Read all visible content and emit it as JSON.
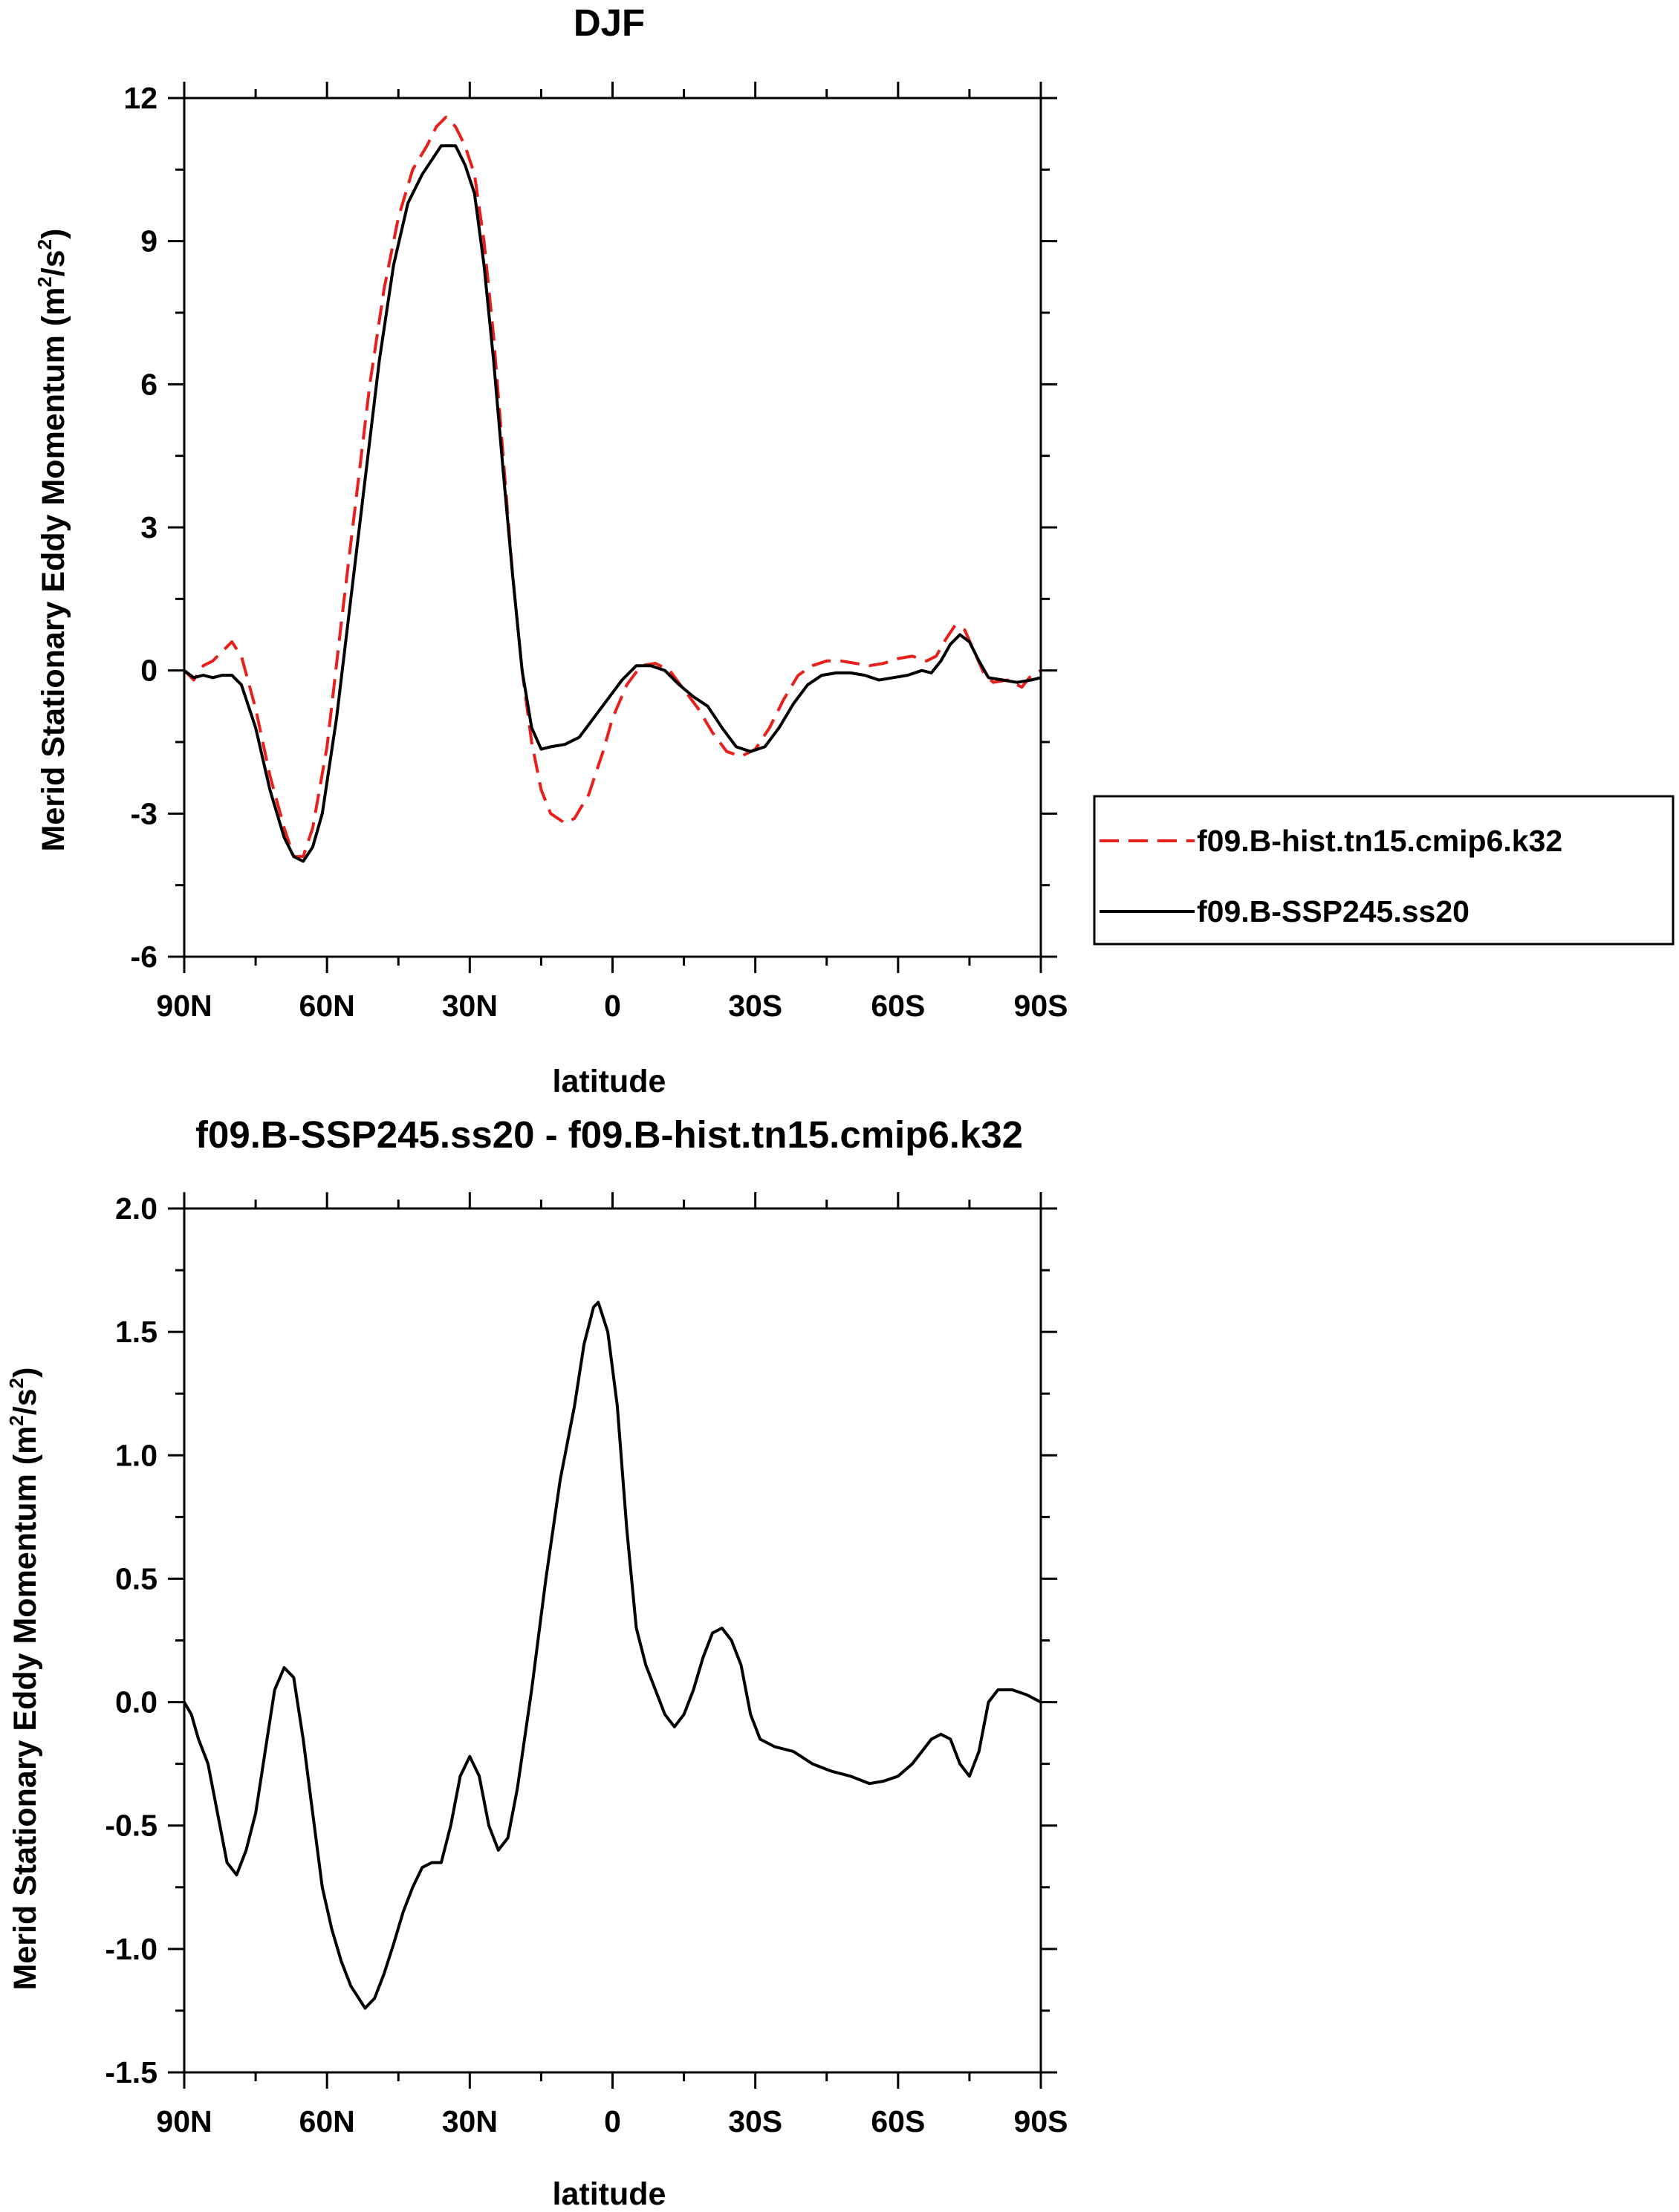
{
  "chart_data": [
    {
      "type": "line",
      "title": "DJF",
      "xlabel": "latitude",
      "ylabel_main": "Merid Stationary Eddy Momentum (m",
      "ylabel_sup1": "2",
      "ylabel_mid": "/s",
      "ylabel_sup2": "2",
      "ylabel_end": ")",
      "xlim": [
        90,
        -90
      ],
      "ylim": [
        -6,
        12
      ],
      "xticks": [
        90,
        60,
        30,
        0,
        -30,
        -60,
        -90
      ],
      "xtick_labels": [
        "90N",
        "60N",
        "30N",
        "0",
        "30S",
        "60S",
        "90S"
      ],
      "yticks": [
        -6,
        -3,
        0,
        3,
        6,
        9,
        12
      ],
      "ytick_labels": [
        "-6",
        "-3",
        "0",
        "3",
        "6",
        "9",
        "12"
      ],
      "grid": false,
      "legend_position": "right",
      "series": [
        {
          "name": "f09.B-hist.tn15.cmip6.k32",
          "color": "#e8201c",
          "dash": "dashed",
          "points": [
            [
              90,
              0
            ],
            [
              88,
              -0.2
            ],
            [
              86,
              0.1
            ],
            [
              84,
              0.2
            ],
            [
              82,
              0.4
            ],
            [
              80,
              0.6
            ],
            [
              78,
              0.3
            ],
            [
              75,
              -0.8
            ],
            [
              72,
              -2.2
            ],
            [
              69,
              -3.3
            ],
            [
              67,
              -3.9
            ],
            [
              65,
              -3.9
            ],
            [
              63,
              -3.3
            ],
            [
              60,
              -1.6
            ],
            [
              57,
              1.0
            ],
            [
              54,
              3.5
            ],
            [
              51,
              6.0
            ],
            [
              48,
              8.0
            ],
            [
              45,
              9.5
            ],
            [
              42,
              10.5
            ],
            [
              39,
              11.0
            ],
            [
              37,
              11.4
            ],
            [
              35,
              11.6
            ],
            [
              33,
              11.4
            ],
            [
              31,
              11.0
            ],
            [
              29,
              10.4
            ],
            [
              27,
              9.0
            ],
            [
              25,
              7.0
            ],
            [
              23,
              4.5
            ],
            [
              21,
              2.0
            ],
            [
              19,
              0.0
            ],
            [
              17,
              -1.5
            ],
            [
              15,
              -2.5
            ],
            [
              13,
              -3.0
            ],
            [
              10,
              -3.2
            ],
            [
              8,
              -3.1
            ],
            [
              5,
              -2.6
            ],
            [
              2,
              -1.7
            ],
            [
              0,
              -1.0
            ],
            [
              -3,
              -0.3
            ],
            [
              -6,
              0.1
            ],
            [
              -9,
              0.15
            ],
            [
              -12,
              0.0
            ],
            [
              -15,
              -0.4
            ],
            [
              -18,
              -0.8
            ],
            [
              -21,
              -1.3
            ],
            [
              -24,
              -1.7
            ],
            [
              -27,
              -1.8
            ],
            [
              -30,
              -1.65
            ],
            [
              -33,
              -1.2
            ],
            [
              -36,
              -0.6
            ],
            [
              -39,
              -0.1
            ],
            [
              -42,
              0.1
            ],
            [
              -45,
              0.2
            ],
            [
              -48,
              0.2
            ],
            [
              -51,
              0.15
            ],
            [
              -54,
              0.1
            ],
            [
              -57,
              0.15
            ],
            [
              -60,
              0.25
            ],
            [
              -63,
              0.3
            ],
            [
              -66,
              0.2
            ],
            [
              -68,
              0.3
            ],
            [
              -70,
              0.65
            ],
            [
              -72,
              0.95
            ],
            [
              -74,
              0.85
            ],
            [
              -76,
              0.4
            ],
            [
              -78,
              -0.05
            ],
            [
              -80,
              -0.25
            ],
            [
              -83,
              -0.2
            ],
            [
              -86,
              -0.35
            ],
            [
              -88,
              -0.1
            ],
            [
              -90,
              0
            ]
          ]
        },
        {
          "name": "f09.B-SSP245.ss20",
          "color": "#000000",
          "dash": "solid",
          "points": [
            [
              90,
              0
            ],
            [
              88,
              -0.15
            ],
            [
              86,
              -0.1
            ],
            [
              84,
              -0.15
            ],
            [
              82,
              -0.1
            ],
            [
              80,
              -0.1
            ],
            [
              78,
              -0.3
            ],
            [
              75,
              -1.2
            ],
            [
              72,
              -2.5
            ],
            [
              69,
              -3.5
            ],
            [
              67,
              -3.9
            ],
            [
              65,
              -4.0
            ],
            [
              63,
              -3.7
            ],
            [
              61,
              -3.0
            ],
            [
              58,
              -1.0
            ],
            [
              55,
              1.5
            ],
            [
              52,
              4.0
            ],
            [
              49,
              6.5
            ],
            [
              46,
              8.5
            ],
            [
              43,
              9.8
            ],
            [
              40,
              10.4
            ],
            [
              38,
              10.7
            ],
            [
              36,
              11.0
            ],
            [
              33,
              11.0
            ],
            [
              31,
              10.6
            ],
            [
              29,
              10.0
            ],
            [
              27,
              8.5
            ],
            [
              25,
              6.5
            ],
            [
              23,
              4.2
            ],
            [
              21,
              2.0
            ],
            [
              19,
              0.0
            ],
            [
              17,
              -1.2
            ],
            [
              15,
              -1.65
            ],
            [
              13,
              -1.6
            ],
            [
              10,
              -1.55
            ],
            [
              7,
              -1.4
            ],
            [
              4,
              -1.0
            ],
            [
              1,
              -0.6
            ],
            [
              -2,
              -0.2
            ],
            [
              -5,
              0.1
            ],
            [
              -8,
              0.1
            ],
            [
              -11,
              0.0
            ],
            [
              -14,
              -0.3
            ],
            [
              -17,
              -0.55
            ],
            [
              -20,
              -0.75
            ],
            [
              -23,
              -1.2
            ],
            [
              -26,
              -1.6
            ],
            [
              -29,
              -1.7
            ],
            [
              -32,
              -1.6
            ],
            [
              -35,
              -1.2
            ],
            [
              -38,
              -0.7
            ],
            [
              -41,
              -0.3
            ],
            [
              -44,
              -0.1
            ],
            [
              -47,
              -0.05
            ],
            [
              -50,
              -0.05
            ],
            [
              -53,
              -0.1
            ],
            [
              -56,
              -0.2
            ],
            [
              -59,
              -0.15
            ],
            [
              -62,
              -0.1
            ],
            [
              -65,
              0.0
            ],
            [
              -67,
              -0.05
            ],
            [
              -69,
              0.2
            ],
            [
              -71,
              0.55
            ],
            [
              -73,
              0.75
            ],
            [
              -75,
              0.6
            ],
            [
              -77,
              0.2
            ],
            [
              -79,
              -0.15
            ],
            [
              -82,
              -0.2
            ],
            [
              -85,
              -0.25
            ],
            [
              -88,
              -0.2
            ],
            [
              -90,
              -0.15
            ]
          ]
        }
      ]
    },
    {
      "type": "line",
      "title": "f09.B-SSP245.ss20 - f09.B-hist.tn15.cmip6.k32",
      "xlabel": "latitude",
      "ylabel_main": "Merid Stationary Eddy Momentum (m",
      "ylabel_sup1": "2",
      "ylabel_mid": "/s",
      "ylabel_sup2": "2",
      "ylabel_end": ")",
      "xlim": [
        90,
        -90
      ],
      "ylim": [
        -1.5,
        2.0
      ],
      "xticks": [
        90,
        60,
        30,
        0,
        -30,
        -60,
        -90
      ],
      "xtick_labels": [
        "90N",
        "60N",
        "30N",
        "0",
        "30S",
        "60S",
        "90S"
      ],
      "yticks": [
        -1.5,
        -1.0,
        -0.5,
        0.0,
        0.5,
        1.0,
        1.5,
        2.0
      ],
      "ytick_labels": [
        "-1.5",
        "-1.0",
        "-0.5",
        "0.0",
        "0.5",
        "1.0",
        "1.5",
        "2.0"
      ],
      "grid": false,
      "series": [
        {
          "color": "#000000",
          "dash": "solid",
          "points": [
            [
              90,
              0.0
            ],
            [
              88.5,
              -0.05
            ],
            [
              87,
              -0.15
            ],
            [
              85,
              -0.25
            ],
            [
              83,
              -0.45
            ],
            [
              81,
              -0.65
            ],
            [
              79,
              -0.7
            ],
            [
              77,
              -0.6
            ],
            [
              75,
              -0.45
            ],
            [
              73,
              -0.2
            ],
            [
              71,
              0.05
            ],
            [
              69,
              0.14
            ],
            [
              67,
              0.1
            ],
            [
              65,
              -0.15
            ],
            [
              63,
              -0.45
            ],
            [
              61,
              -0.75
            ],
            [
              59,
              -0.92
            ],
            [
              57,
              -1.05
            ],
            [
              55,
              -1.15
            ],
            [
              52,
              -1.24
            ],
            [
              50,
              -1.2
            ],
            [
              48,
              -1.1
            ],
            [
              46,
              -0.98
            ],
            [
              44,
              -0.85
            ],
            [
              42,
              -0.75
            ],
            [
              40,
              -0.67
            ],
            [
              38,
              -0.65
            ],
            [
              36,
              -0.65
            ],
            [
              34,
              -0.5
            ],
            [
              32,
              -0.3
            ],
            [
              30,
              -0.22
            ],
            [
              28,
              -0.3
            ],
            [
              26,
              -0.5
            ],
            [
              24,
              -0.6
            ],
            [
              22,
              -0.55
            ],
            [
              20,
              -0.35
            ],
            [
              17,
              0.05
            ],
            [
              14,
              0.5
            ],
            [
              11,
              0.9
            ],
            [
              8,
              1.2
            ],
            [
              6,
              1.45
            ],
            [
              4,
              1.6
            ],
            [
              3,
              1.62
            ],
            [
              1,
              1.5
            ],
            [
              -1,
              1.2
            ],
            [
              -3,
              0.7
            ],
            [
              -5,
              0.3
            ],
            [
              -7,
              0.15
            ],
            [
              -9,
              0.05
            ],
            [
              -11,
              -0.05
            ],
            [
              -13,
              -0.1
            ],
            [
              -15,
              -0.05
            ],
            [
              -17,
              0.05
            ],
            [
              -19,
              0.18
            ],
            [
              -21,
              0.28
            ],
            [
              -23,
              0.3
            ],
            [
              -25,
              0.25
            ],
            [
              -27,
              0.15
            ],
            [
              -29,
              -0.05
            ],
            [
              -31,
              -0.15
            ],
            [
              -34,
              -0.18
            ],
            [
              -38,
              -0.2
            ],
            [
              -42,
              -0.25
            ],
            [
              -46,
              -0.28
            ],
            [
              -50,
              -0.3
            ],
            [
              -54,
              -0.33
            ],
            [
              -57,
              -0.32
            ],
            [
              -60,
              -0.3
            ],
            [
              -63,
              -0.25
            ],
            [
              -65,
              -0.2
            ],
            [
              -67,
              -0.15
            ],
            [
              -69,
              -0.13
            ],
            [
              -71,
              -0.15
            ],
            [
              -73,
              -0.25
            ],
            [
              -75,
              -0.3
            ],
            [
              -77,
              -0.2
            ],
            [
              -79,
              0.0
            ],
            [
              -81,
              0.05
            ],
            [
              -84,
              0.05
            ],
            [
              -87,
              0.03
            ],
            [
              -90,
              0.0
            ]
          ]
        }
      ]
    }
  ]
}
